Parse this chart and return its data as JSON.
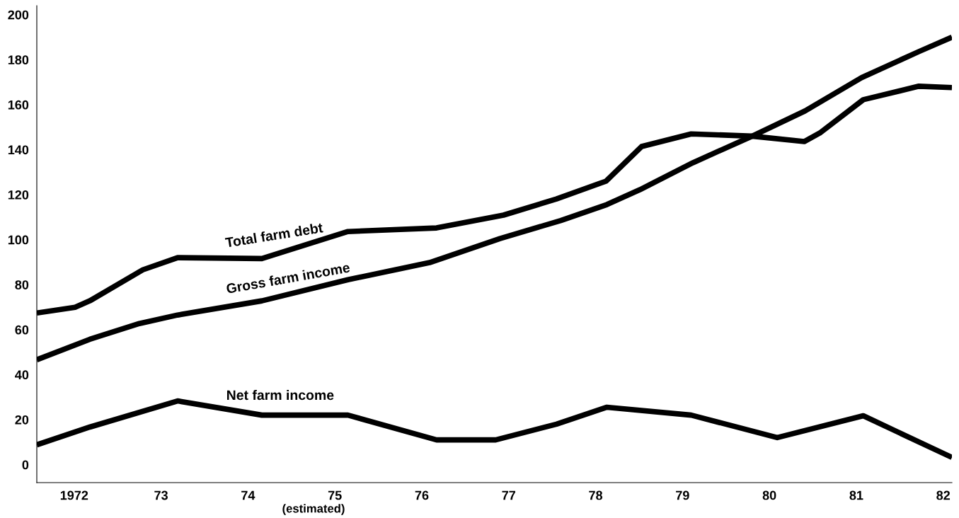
{
  "chart_data": {
    "type": "line",
    "xlim": [
      1971.57,
      1982.1
    ],
    "ylim": [
      -8,
      204
    ],
    "xticks": [
      {
        "value": 1972,
        "label": "1972"
      },
      {
        "value": 1973,
        "label": "73"
      },
      {
        "value": 1974,
        "label": "74"
      },
      {
        "value": 1975,
        "label": "75"
      },
      {
        "value": 1976,
        "label": "76"
      },
      {
        "value": 1977,
        "label": "77"
      },
      {
        "value": 1978,
        "label": "78"
      },
      {
        "value": 1979,
        "label": "79"
      },
      {
        "value": 1980,
        "label": "80"
      },
      {
        "value": 1981,
        "label": "81"
      },
      {
        "value": 1982,
        "label": "82"
      }
    ],
    "yticks": [
      0,
      20,
      40,
      60,
      80,
      100,
      120,
      140,
      160,
      180,
      200
    ],
    "grid": false,
    "legend": false,
    "marker": "none",
    "line_style": "solid",
    "annotations": [
      "(estimated)"
    ],
    "series": [
      {
        "name": "Total farm debt",
        "color": "#000000",
        "x": [
          1971.57,
          1972.01,
          1972.18,
          1972.79,
          1973.19,
          1974.16,
          1975.15,
          1976.17,
          1976.94,
          1977.55,
          1978.12,
          1978.53,
          1979.1,
          1979.8,
          1980.4,
          1980.58,
          1981.08,
          1981.72,
          1982.1
        ],
        "values": [
          67.4,
          69.9,
          72.8,
          86.6,
          92,
          91.6,
          103.6,
          105.2,
          110.9,
          118.1,
          126,
          141.4,
          147,
          146,
          143.6,
          147.4,
          162.2,
          168.2,
          167.6
        ]
      },
      {
        "name": "Gross farm income",
        "color": "#000000",
        "x": [
          1971.57,
          1972.18,
          1972.75,
          1973.19,
          1974.16,
          1975.15,
          1976.09,
          1976.9,
          1977.6,
          1978.13,
          1978.51,
          1979.12,
          1979.8,
          1980.41,
          1981.06,
          1981.72,
          1982.1
        ],
        "values": [
          46.6,
          55.7,
          62.7,
          66.5,
          72.8,
          82.2,
          89.8,
          100.5,
          108.5,
          115.6,
          122.2,
          134.2,
          146,
          157.2,
          172,
          183.6,
          190
        ]
      },
      {
        "name": "Net farm income",
        "color": "#000000",
        "x": [
          1971.57,
          1972.18,
          1973.19,
          1974.16,
          1975.15,
          1976.17,
          1976.85,
          1977.55,
          1978.13,
          1979.1,
          1980.09,
          1981.08,
          1982.1
        ],
        "values": [
          8.8,
          16.7,
          28.3,
          22,
          22,
          11,
          11,
          18,
          25.5,
          22,
          12,
          21.7,
          3.2
        ]
      }
    ]
  }
}
